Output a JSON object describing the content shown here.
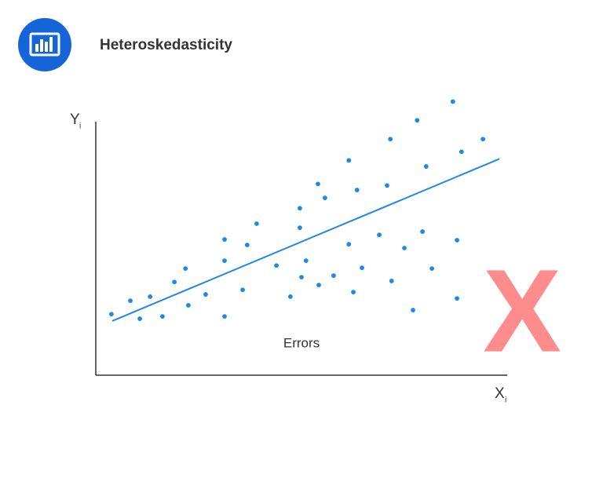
{
  "chart_data": {
    "type": "scatter",
    "title": "Heteroskedasticity",
    "x_label": {
      "text": "X",
      "sub": "i"
    },
    "y_label": {
      "text": "Y",
      "sub": "i"
    },
    "annotation": "Errors",
    "marker": "X",
    "marker_color": "#ff8c8c",
    "color": "#1e88e5",
    "line_color": "#1e88e5",
    "xlim": [
      0,
      100
    ],
    "ylim": [
      0,
      110
    ],
    "x": [
      3.8,
      8.4,
      10.7,
      13.2,
      16.2,
      19.1,
      21.8,
      22.5,
      26.7,
      31.3,
      31.3,
      31.3,
      35.7,
      36.8,
      39.1,
      43.9,
      47.3,
      49.6,
      49.6,
      50.0,
      51.1,
      54.0,
      54.2,
      55.7,
      57.8,
      61.5,
      61.5,
      62.6,
      63.5,
      64.7,
      68.9,
      70.8,
      71.6,
      71.9,
      75.0,
      77.1,
      78.1,
      79.4,
      80.3,
      81.7,
      86.8,
      87.8,
      87.8,
      88.9,
      94.1
    ],
    "y": [
      24.1,
      29.4,
      22.3,
      31.0,
      23.2,
      36.8,
      42.1,
      27.6,
      31.9,
      53.6,
      45.2,
      23.2,
      33.7,
      51.4,
      59.8,
      43.3,
      31.0,
      65.9,
      58.2,
      38.7,
      45.2,
      75.5,
      35.6,
      70.0,
      39.3,
      84.8,
      51.7,
      32.8,
      73.1,
      42.4,
      55.4,
      74.9,
      93.2,
      37.2,
      50.2,
      25.7,
      100.6,
      56.7,
      82.4,
      42.1,
      108.0,
      53.3,
      30.3,
      88.2,
      93.2
    ],
    "trend_line": {
      "x": [
        4.0,
        98.1
      ],
      "y": [
        21.4,
        85.4
      ]
    }
  }
}
